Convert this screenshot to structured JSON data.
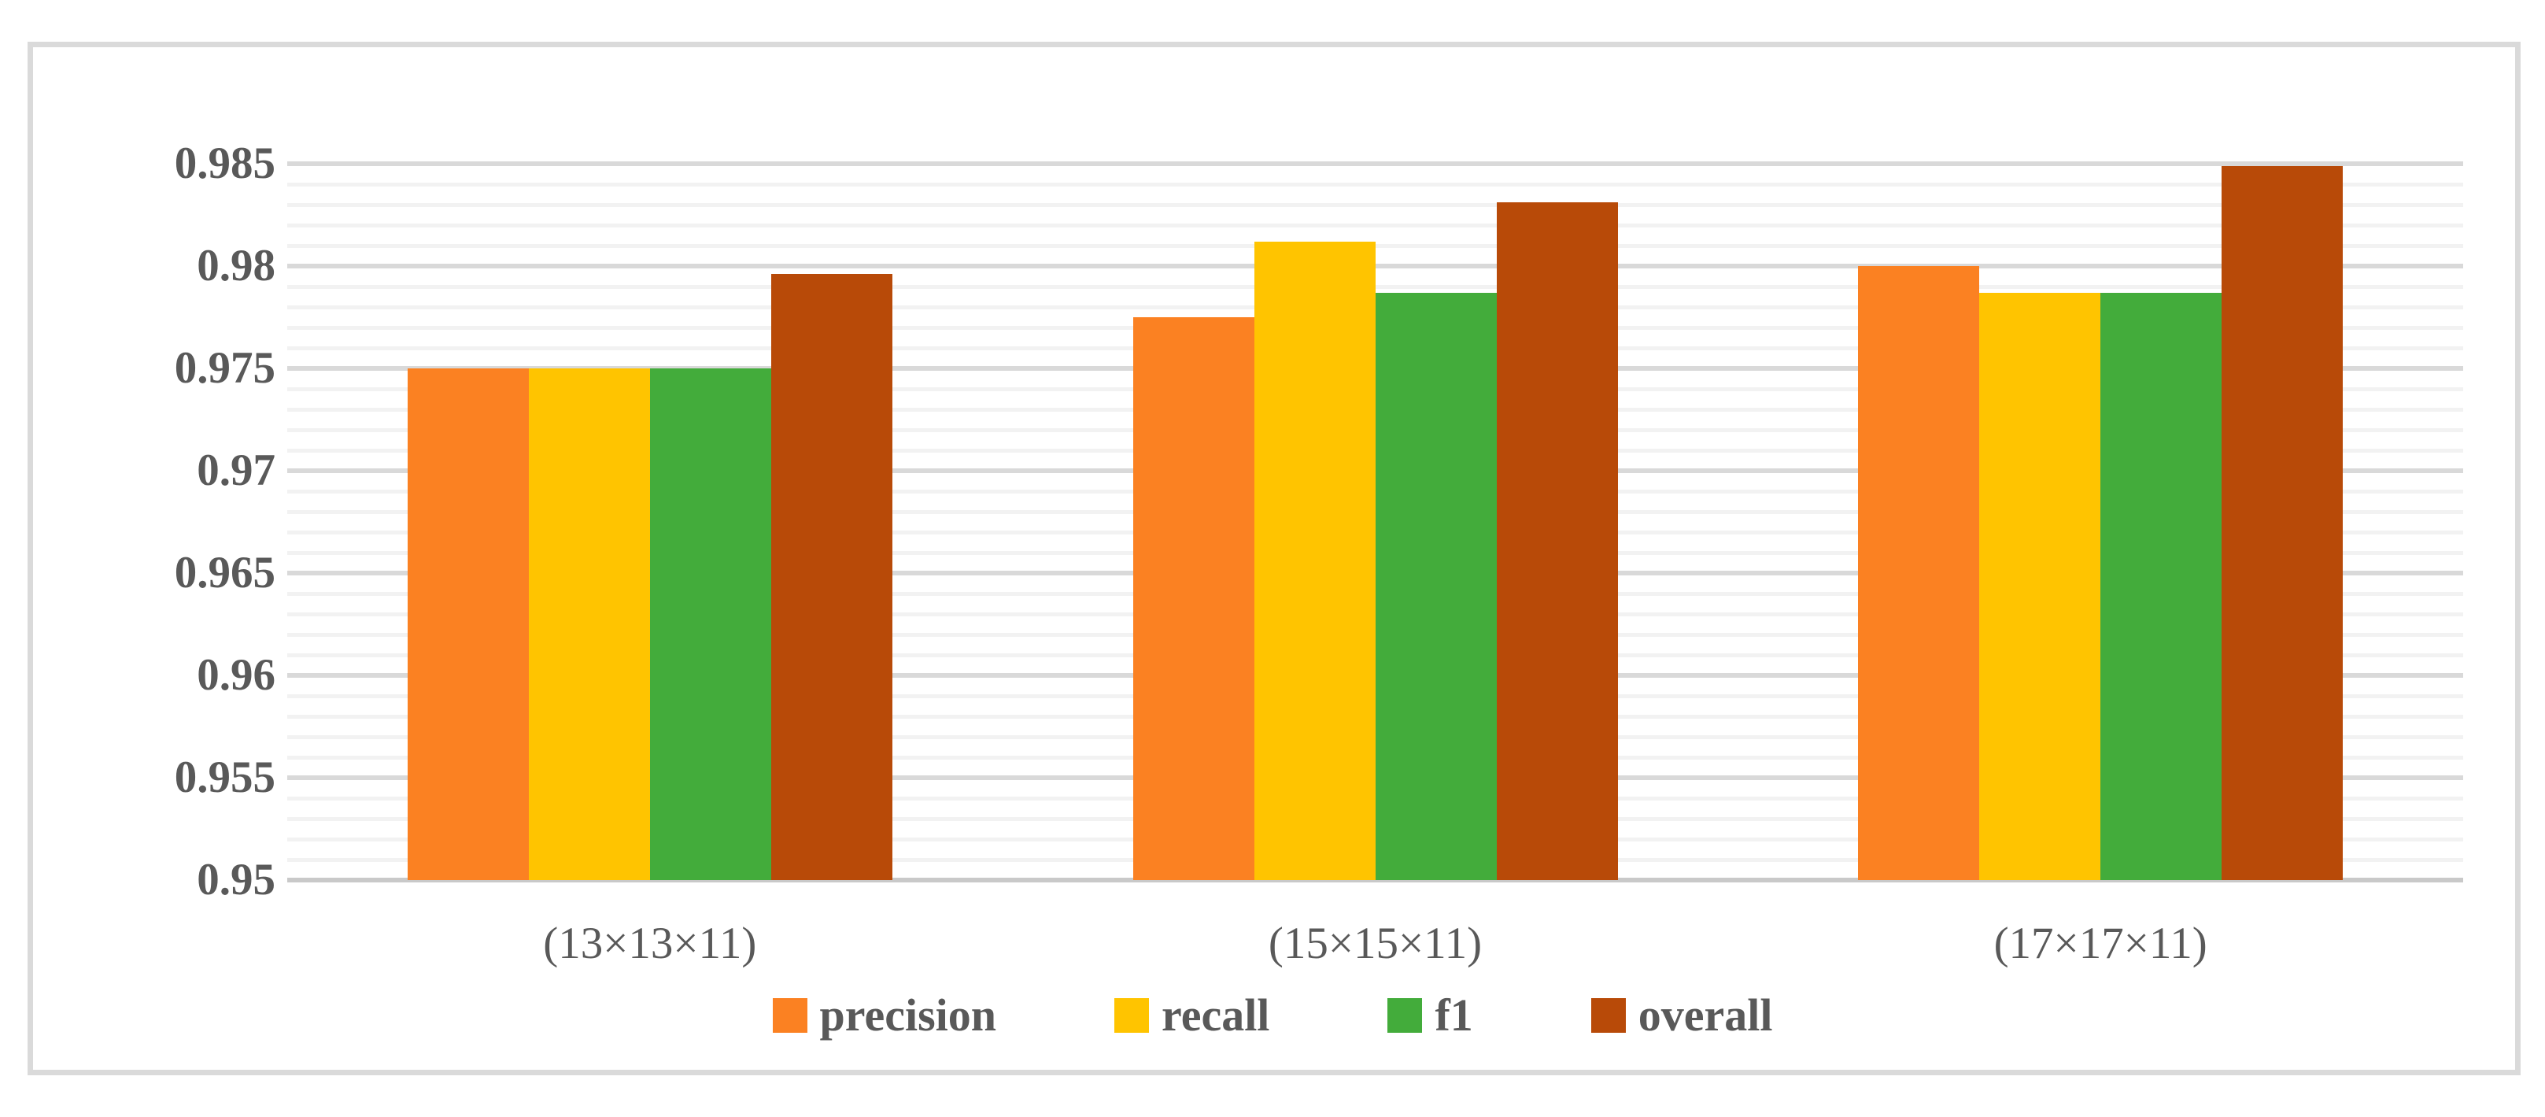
{
  "chart_data": {
    "type": "bar",
    "title": "",
    "xlabel": "",
    "ylabel": "",
    "categories": [
      "(13×13×11)",
      "(15×15×11)",
      "(17×17×11)"
    ],
    "series": [
      {
        "name": "precision",
        "color": "#FB8122",
        "values": [
          0.975,
          0.9775,
          0.98
        ]
      },
      {
        "name": "recall",
        "color": "#FFC400",
        "values": [
          0.975,
          0.9812,
          0.9787
        ]
      },
      {
        "name": "f1",
        "color": "#43AC3B",
        "values": [
          0.975,
          0.9787,
          0.9787
        ]
      },
      {
        "name": "overall",
        "color": "#B84A08",
        "values": [
          0.9796,
          0.9831,
          0.9849
        ]
      }
    ],
    "ylim": [
      0.95,
      0.985
    ],
    "ytick_step": 0.005,
    "minor_step": 0.001,
    "yticks": [
      "0.95",
      "0.955",
      "0.96",
      "0.965",
      "0.97",
      "0.975",
      "0.98",
      "0.985"
    ],
    "grid": "horizontal, major + minor",
    "legend_position": "bottom"
  },
  "colors": {
    "text": "#595959",
    "major_grid": "#D9D9D9",
    "minor_grid": "#F2F2F2",
    "axis_line": "#C9C9C9",
    "frame_border": "#DADADA",
    "background": "#FFFFFF"
  }
}
